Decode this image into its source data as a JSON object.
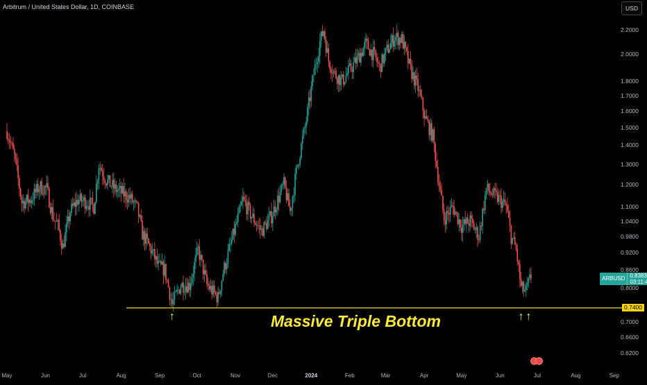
{
  "header": {
    "title": "Arbitrum / United States Dollar, 1D, COINBASE"
  },
  "currency_button": "USD",
  "price_tag": {
    "symbol": "ARBUSD",
    "price": "0.8383",
    "countdown": "03:11:48"
  },
  "level_tag": "0.7400",
  "annotation_text": "Massive Triple Bottom",
  "colors": {
    "up": "#26a69a",
    "down": "#ef5350",
    "support_line": "#f5d318",
    "annotation": "#ffeb3b"
  },
  "icons": {
    "arrow": "↑"
  },
  "arrow_marks": [
    {
      "label": "↑",
      "date": "2023-09-11"
    },
    {
      "label": "↑",
      "date": "2024-06-18"
    },
    {
      "label": "↑",
      "date": "2024-06-24"
    }
  ],
  "chart_data": {
    "type": "candlestick",
    "x_axis": {
      "ticks": [
        "May",
        "Jun",
        "Jul",
        "Aug",
        "Sep",
        "Oct",
        "Nov",
        "Dec",
        "2024",
        "Feb",
        "Mar",
        "Apr",
        "May",
        "Jun",
        "Jul",
        "Aug",
        "Sep"
      ],
      "bold_tick": "2024"
    },
    "y_axis": {
      "scale": "log",
      "ticks": [
        "2.2000",
        "2.0000",
        "1.8000",
        "1.7000",
        "1.6000",
        "1.5000",
        "1.4000",
        "1.3000",
        "1.2000",
        "1.1000",
        "1.0400",
        "0.9800",
        "0.9200",
        "0.8600",
        "0.8000",
        "0.7400",
        "0.7000",
        "0.6600",
        "0.6200"
      ],
      "range": [
        0.59,
        2.4
      ]
    },
    "support_level": 0.74,
    "last_price": 0.8383,
    "date_range": [
      "2023-05-01",
      "2024-06-26"
    ],
    "price_path": [
      [
        "2023-05-01",
        1.48
      ],
      [
        "2023-05-07",
        1.34
      ],
      [
        "2023-05-13",
        1.12
      ],
      [
        "2023-05-20",
        1.13
      ],
      [
        "2023-05-27",
        1.19
      ],
      [
        "2023-06-02",
        1.18
      ],
      [
        "2023-06-07",
        1.06
      ],
      [
        "2023-06-11",
        1.02
      ],
      [
        "2023-06-15",
        0.94
      ],
      [
        "2023-06-21",
        1.08
      ],
      [
        "2023-06-27",
        1.13
      ],
      [
        "2023-07-05",
        1.12
      ],
      [
        "2023-07-10",
        1.1
      ],
      [
        "2023-07-14",
        1.3
      ],
      [
        "2023-07-20",
        1.22
      ],
      [
        "2023-07-27",
        1.18
      ],
      [
        "2023-08-08",
        1.14
      ],
      [
        "2023-08-14",
        1.09
      ],
      [
        "2023-08-18",
        0.99
      ],
      [
        "2023-08-25",
        0.93
      ],
      [
        "2023-08-31",
        0.87
      ],
      [
        "2023-09-05",
        0.86
      ],
      [
        "2023-09-11",
        0.75
      ],
      [
        "2023-09-18",
        0.81
      ],
      [
        "2023-09-25",
        0.81
      ],
      [
        "2023-10-02",
        0.93
      ],
      [
        "2023-10-09",
        0.81
      ],
      [
        "2023-10-18",
        0.77
      ],
      [
        "2023-10-22",
        0.85
      ],
      [
        "2023-10-30",
        0.98
      ],
      [
        "2023-11-07",
        1.13
      ],
      [
        "2023-11-14",
        1.06
      ],
      [
        "2023-11-22",
        1.0
      ],
      [
        "2023-11-30",
        1.06
      ],
      [
        "2023-12-05",
        1.13
      ],
      [
        "2023-12-10",
        1.2
      ],
      [
        "2023-12-15",
        1.08
      ],
      [
        "2023-12-21",
        1.3
      ],
      [
        "2023-12-27",
        1.5
      ],
      [
        "2024-01-03",
        1.85
      ],
      [
        "2024-01-08",
        2.1
      ],
      [
        "2024-01-11",
        2.2
      ],
      [
        "2024-01-15",
        1.95
      ],
      [
        "2024-01-20",
        1.85
      ],
      [
        "2024-01-26",
        1.8
      ],
      [
        "2024-02-01",
        1.88
      ],
      [
        "2024-02-07",
        1.96
      ],
      [
        "2024-02-14",
        2.08
      ],
      [
        "2024-02-20",
        2.0
      ],
      [
        "2024-02-25",
        1.9
      ],
      [
        "2024-03-02",
        2.03
      ],
      [
        "2024-03-08",
        2.14
      ],
      [
        "2024-03-14",
        2.12
      ],
      [
        "2024-03-21",
        1.88
      ],
      [
        "2024-03-27",
        1.75
      ],
      [
        "2024-04-02",
        1.55
      ],
      [
        "2024-04-08",
        1.45
      ],
      [
        "2024-04-13",
        1.2
      ],
      [
        "2024-04-17",
        1.05
      ],
      [
        "2024-04-24",
        1.1
      ],
      [
        "2024-05-01",
        1.02
      ],
      [
        "2024-05-08",
        1.04
      ],
      [
        "2024-05-15",
        0.98
      ],
      [
        "2024-05-21",
        1.18
      ],
      [
        "2024-05-27",
        1.15
      ],
      [
        "2024-06-01",
        1.13
      ],
      [
        "2024-06-06",
        1.1
      ],
      [
        "2024-06-10",
        0.98
      ],
      [
        "2024-06-14",
        0.93
      ],
      [
        "2024-06-18",
        0.8
      ],
      [
        "2024-06-22",
        0.79
      ],
      [
        "2024-06-26",
        0.8383
      ]
    ]
  }
}
